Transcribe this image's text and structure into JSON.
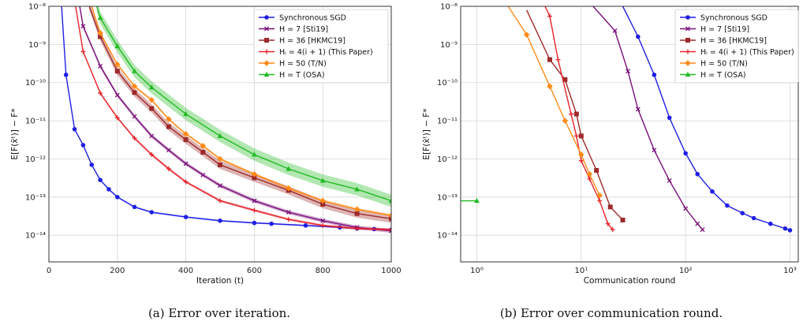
{
  "captions": [
    "(a) Error over iteration.",
    "(b) Error over communication round."
  ],
  "chart_data": [
    {
      "type": "line",
      "xlabel": "Iteration (t)",
      "ylabel": "E[F(x̄ᵗ)] − F*",
      "xlim": [
        0,
        1000
      ],
      "ylim": [
        2e-15,
        1e-08
      ],
      "yscale": "log",
      "xticks": [
        "0",
        "200",
        "400",
        "600",
        "800",
        "1000"
      ],
      "yticks": [
        "10⁻⁸",
        "10⁻⁹",
        "10⁻¹⁰",
        "10⁻¹¹",
        "10⁻¹²",
        "10⁻¹³",
        "10⁻¹⁴"
      ],
      "grid": true,
      "legend": "top-right",
      "series": [
        {
          "name": "Synchronous SGD",
          "color": "#1f1fe6",
          "marker": "circle",
          "x": [
            37,
            50,
            75,
            100,
            125,
            150,
            175,
            200,
            250,
            300,
            400,
            500,
            600,
            650,
            750,
            850,
            900,
            950,
            1000
          ],
          "y": [
            1e-08,
            1.6e-10,
            6e-12,
            2.3e-12,
            7e-13,
            2.8e-13,
            1.6e-13,
            1e-13,
            5.5e-14,
            4e-14,
            3e-14,
            2.4e-14,
            2.1e-14,
            2e-14,
            1.8e-14,
            1.6e-14,
            1.5e-14,
            1.45e-14,
            1.4e-14
          ]
        },
        {
          "name": "H = 7 [Sti19]",
          "color": "#7a0f7a",
          "marker": "x",
          "x": [
            90,
            100,
            150,
            200,
            250,
            300,
            350,
            400,
            450,
            500,
            600,
            700,
            800,
            900,
            1000
          ],
          "y": [
            1e-08,
            3e-09,
            2.7e-10,
            4.7e-11,
            1.3e-11,
            4e-12,
            1.7e-12,
            7.5e-13,
            3.8e-13,
            2e-13,
            8e-14,
            4e-14,
            2.4e-14,
            1.6e-14,
            1.3e-14
          ]
        },
        {
          "name": "H = 36 [HKMC19]",
          "color": "#9e2a2a",
          "marker": "square",
          "x": [
            118,
            150,
            200,
            250,
            300,
            350,
            400,
            450,
            500,
            600,
            700,
            800,
            900,
            1000
          ],
          "y": [
            1e-08,
            1.6e-09,
            2e-10,
            5.5e-11,
            2.1e-11,
            7e-12,
            3.2e-12,
            1.5e-12,
            7e-13,
            3.2e-13,
            1.5e-13,
            6.5e-14,
            3.7e-14,
            2.7e-14
          ]
        },
        {
          "name": "Hᵢ = 4(i + 1) (This Paper)",
          "color": "#e8232b",
          "marker": "plus",
          "x": [
            78,
            100,
            150,
            200,
            250,
            300,
            350,
            400,
            500,
            600,
            700,
            800,
            900,
            1000
          ],
          "y": [
            1e-08,
            6.5e-10,
            5.3e-11,
            1.2e-11,
            3.5e-12,
            1.3e-12,
            5.5e-13,
            2.5e-13,
            8e-14,
            4.5e-14,
            2.6e-14,
            1.8e-14,
            1.5e-14,
            1.4e-14
          ]
        },
        {
          "name": "H = 50 (T/N)",
          "color": "#ff8c1a",
          "marker": "diamond",
          "x": [
            125,
            150,
            200,
            250,
            300,
            350,
            400,
            450,
            500,
            600,
            700,
            800,
            900,
            1000
          ],
          "y": [
            1e-08,
            2e-09,
            3e-10,
            8e-11,
            3.5e-11,
            1.1e-11,
            4.5e-12,
            2.2e-12,
            1e-12,
            4e-13,
            1.7e-13,
            8e-14,
            4.8e-14,
            3.3e-14
          ]
        },
        {
          "name": "H = T (OSA)",
          "color": "#22bb22",
          "marker": "triangle",
          "x": [
            140,
            150,
            200,
            250,
            300,
            400,
            500,
            600,
            700,
            800,
            900,
            1000
          ],
          "y": [
            1e-08,
            5e-09,
            9e-10,
            2e-10,
            7.5e-11,
            1.5e-11,
            4e-12,
            1.3e-12,
            5.5e-13,
            2.7e-13,
            1.6e-13,
            8e-14
          ]
        }
      ]
    },
    {
      "type": "line",
      "xlabel": "Communication round",
      "ylabel": "E[F(x̄ᵗ)] − F*",
      "xlim": [
        0.7,
        1200
      ],
      "ylim": [
        2e-15,
        1e-08
      ],
      "xscale": "log",
      "yscale": "log",
      "xticks": [
        "10⁰",
        "10¹",
        "10²",
        "10³"
      ],
      "yticks": [
        "10⁻⁸",
        "10⁻⁹",
        "10⁻¹⁰",
        "10⁻¹¹",
        "10⁻¹²",
        "10⁻¹³",
        "10⁻¹⁴"
      ],
      "grid": true,
      "legend": "top-right",
      "series": [
        {
          "name": "Synchronous SGD",
          "color": "#1f1fe6",
          "marker": "circle",
          "x": [
            25,
            35,
            50,
            70,
            100,
            130,
            180,
            250,
            350,
            450,
            650,
            900,
            1000
          ],
          "y": [
            1e-08,
            1.6e-09,
            1.6e-10,
            1.2e-11,
            1.4e-12,
            4e-13,
            1.4e-13,
            6e-14,
            3.8e-14,
            2.8e-14,
            2e-14,
            1.5e-14,
            1.35e-14
          ]
        },
        {
          "name": "H = 7 [Sti19]",
          "color": "#7a0f7a",
          "marker": "x",
          "x": [
            13,
            21,
            28,
            35,
            50,
            70,
            100,
            130,
            145
          ],
          "y": [
            1e-08,
            2.3e-09,
            2e-10,
            2e-11,
            1.7e-12,
            2.7e-13,
            5e-14,
            2e-14,
            1.4e-14
          ]
        },
        {
          "name": "H = 36 [HKMC19]",
          "color": "#9e2a2a",
          "marker": "square",
          "x": [
            3,
            5,
            7,
            9,
            10,
            14,
            19,
            25
          ],
          "y": [
            8e-09,
            4e-10,
            1.2e-10,
            1.5e-11,
            4e-12,
            5e-13,
            5.5e-14,
            2.5e-14
          ]
        },
        {
          "name": "Hᵢ = 4(i + 1) (This Paper)",
          "color": "#e8232b",
          "marker": "plus",
          "x": [
            4.5,
            5,
            6,
            8,
            9,
            10,
            12,
            15,
            18,
            20
          ],
          "y": [
            1e-08,
            5.5e-09,
            4e-10,
            1.5e-11,
            4e-12,
            9e-13,
            3e-13,
            8e-14,
            2e-14,
            1.4e-14
          ]
        },
        {
          "name": "H = 50 (T/N)",
          "color": "#ff8c1a",
          "marker": "diamond",
          "x": [
            2,
            3,
            5,
            7,
            10,
            12,
            15
          ],
          "y": [
            1e-08,
            1.8e-09,
            8e-11,
            1e-11,
            1.3e-12,
            4e-13,
            1.1e-13
          ]
        },
        {
          "name": "H = T (OSA)",
          "color": "#22bb22",
          "marker": "triangle",
          "x": [
            0.7,
            1
          ],
          "y": [
            8e-14,
            8e-14
          ]
        }
      ]
    }
  ]
}
